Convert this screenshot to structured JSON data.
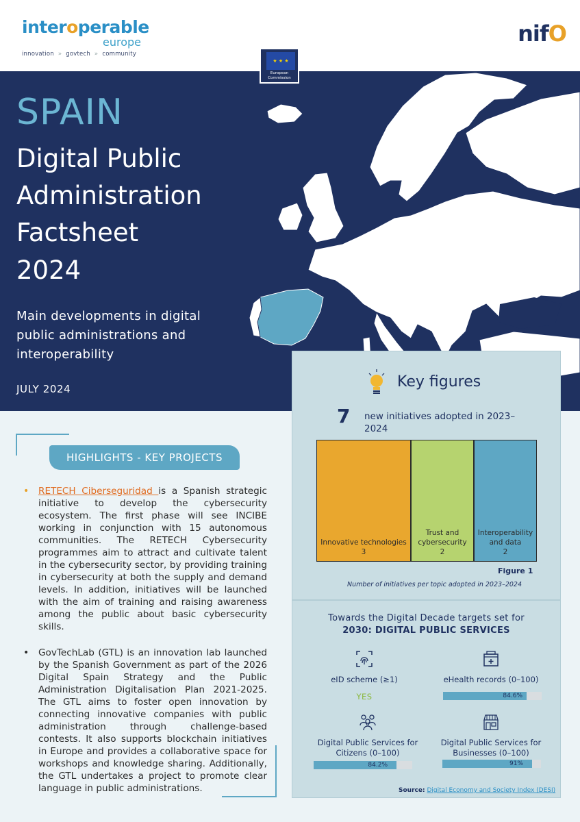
{
  "header": {
    "brand_left_a": "inter",
    "brand_left_b": "o",
    "brand_left_c": "perable",
    "brand_left_sub": "europe",
    "brand_tag_1": "innovation",
    "brand_tag_2": "govtech",
    "brand_tag_3": "community",
    "ec_line1": "European",
    "ec_line2": "Commission",
    "brand_right_a": "n",
    "brand_right_b": "i",
    "brand_right_c": "f",
    "brand_right_d": "O"
  },
  "hero": {
    "country": "SPAIN",
    "title_lines": [
      "Digital Public",
      "Administration",
      "Factsheet",
      "2024"
    ],
    "subtitle": "Main developments in digital public administrations and interoperability",
    "date": "JULY 2024"
  },
  "highlights": {
    "banner": "HIGHLIGHTS - KEY PROJECTS",
    "item1_link": "RETECH Ciberseguridad ",
    "item1_text": "is a Spanish strategic initiative to develop the cybersecurity ecosystem. The first phase will see INCIBE working in conjunction with 15 autonomous communities. The RETECH Cybersecurity programmes aim to attract and cultivate talent in the cybersecurity sector, by providing training in cybersecurity at both the supply and demand levels. In addition, initiatives will be launched with the aim of training and raising awareness among the public about basic cybersecurity skills.",
    "item2_text": "GovTechLab (GTL) is an innovation lab launched by the Spanish Government as part of the 2026 Digital Spain Strategy and the Public Administration Digitalisation Plan 2021-2025. The GTL aims to foster open innovation by connecting innovative companies with public administration through challenge-based contests. It also supports blockchain initiatives in Europe and provides a collaborative space for workshops and knowledge sharing. Additionally, the GTL undertakes a project to promote clear language in public administrations."
  },
  "key_figures": {
    "title": "Key figures",
    "count": "7",
    "count_text": "new initiatives adopted in 2023–2024",
    "figure_label": "Figure 1",
    "figure_caption": "Number of initiatives per topic adopted in 2023–2024"
  },
  "chart_data": {
    "type": "treemap",
    "categories": [
      "Innovative technologies",
      "Trust and cybersecurity",
      "Interoperability and data"
    ],
    "values": [
      3,
      2,
      2
    ],
    "colors": [
      "#e9a72e",
      "#b6d36f",
      "#5ea7c4"
    ]
  },
  "digital_decade": {
    "title_a": "Towards the Digital Decade targets set for",
    "title_b": "2030: DIGITAL PUBLIC SERVICES",
    "eid_label": "eID scheme (≥1)",
    "eid_value": "YES",
    "ehealth_label": "eHealth records (0–100)",
    "ehealth_value": "84.6%",
    "ehealth_pct": 84.6,
    "citizens_label_1": "Digital Public Services for",
    "citizens_label_2": "Citizens (0–100)",
    "citizens_value": "84.2%",
    "citizens_pct": 84.2,
    "business_label_1": "Digital Public Services for",
    "business_label_2": "Businesses (0–100)",
    "business_value": "91%",
    "business_pct": 91,
    "source_prefix": "Source:",
    "source_link": "Digital Economy and Society Index (DESI)"
  }
}
